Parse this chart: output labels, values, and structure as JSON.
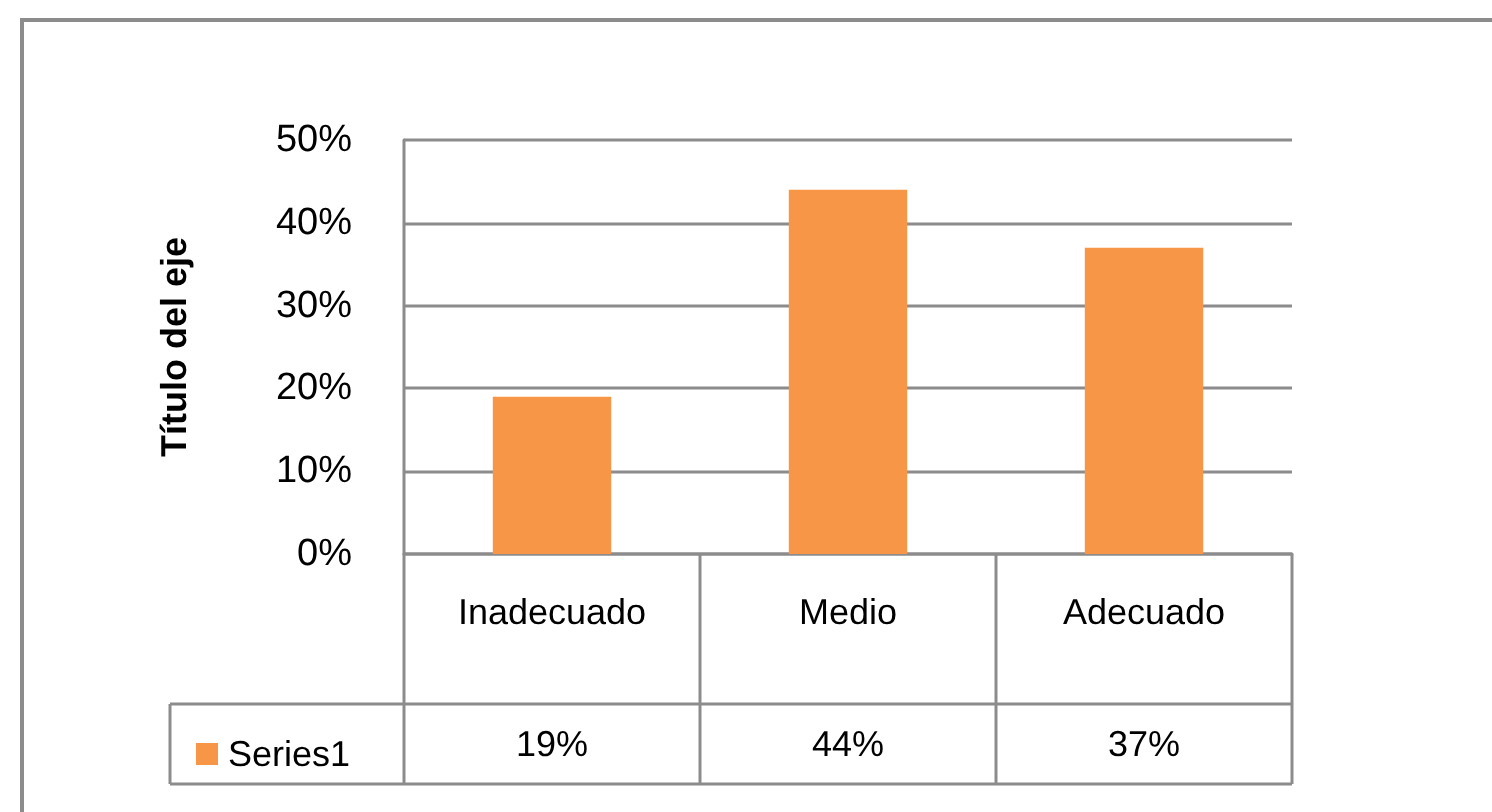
{
  "chart_data": {
    "type": "bar",
    "categories": [
      "Inadecuado",
      "Medio",
      "Adecuado"
    ],
    "series": [
      {
        "name": "Series1",
        "color": "#f79646",
        "values": [
          19,
          44,
          37
        ],
        "value_labels": [
          "19%",
          "44%",
          "37%"
        ]
      }
    ],
    "ylabel": "Título del eje",
    "ylim": [
      0,
      50
    ],
    "yticks": [
      {
        "value": 0,
        "label": "0%"
      },
      {
        "value": 10,
        "label": "10%"
      },
      {
        "value": 20,
        "label": "20%"
      },
      {
        "value": 30,
        "label": "30%"
      },
      {
        "value": 40,
        "label": "40%"
      },
      {
        "value": 50,
        "label": "50%"
      }
    ],
    "grid": "y",
    "legend": "bottom left"
  }
}
